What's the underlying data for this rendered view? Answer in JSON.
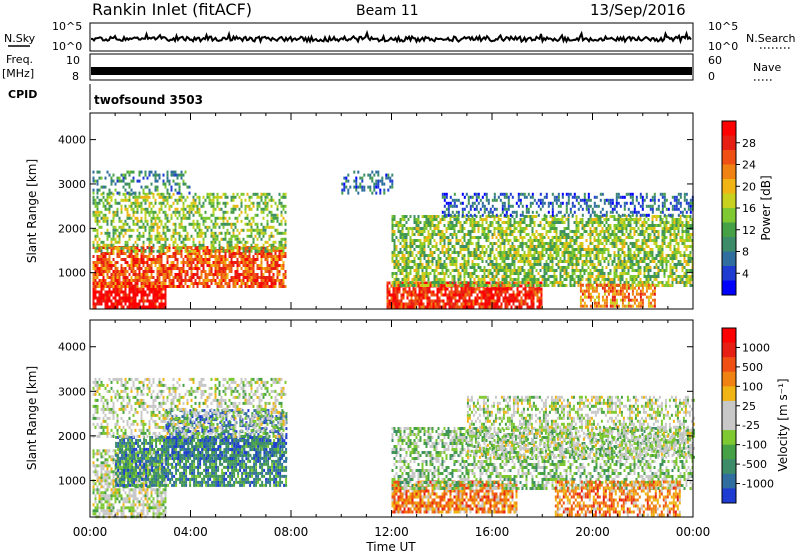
{
  "header": {
    "station": "Rankin Inlet (fitACF)",
    "beam": "Beam 11",
    "date": "13/Sep/2016"
  },
  "top_panels": {
    "nsky_label": "N.Sky",
    "nsearch_label": "N.Search",
    "nsky_ticks": [
      "10^5",
      "10^0"
    ],
    "freq_label_top": "Freq.",
    "freq_label_unit": "[MHz]",
    "freq_ticks": [
      "10",
      "8"
    ],
    "nave_label": "Nave",
    "nave_ticks": [
      "60",
      "0"
    ],
    "cpid_label": "CPID",
    "cpid_value": "twofsound 3503"
  },
  "chart_data": [
    {
      "type": "heatmap",
      "name": "power",
      "ylabel": "Slant Range [km]",
      "xlabel": "Time UT",
      "x_ticks": [
        "00:00",
        "04:00",
        "08:00",
        "12:00",
        "16:00",
        "20:00",
        "00:00"
      ],
      "x_range_hours": [
        0,
        24
      ],
      "y_ticks": [
        1000,
        2000,
        3000,
        4000
      ],
      "y_range_km": [
        180,
        4600
      ],
      "colorbar_label": "Power [dB]",
      "colorbar_ticks": [
        "28",
        "24",
        "20",
        "16",
        "12",
        "8",
        "4"
      ],
      "colorbar_colors": [
        "#0000ff",
        "#1e3cd2",
        "#2f6e9e",
        "#3c8c6a",
        "#46a046",
        "#7ec832",
        "#c8d21e",
        "#f0b414",
        "#f08214",
        "#f05014",
        "#e61e14",
        "#ff0000"
      ],
      "regions": [
        {
          "t0": 0.1,
          "t1": 3.0,
          "r0": 200,
          "r1": 800,
          "level": 11,
          "density": 0.85
        },
        {
          "t0": 0.1,
          "t1": 7.8,
          "r0": 700,
          "r1": 1600,
          "level": 9,
          "density": 0.75
        },
        {
          "t0": 0.1,
          "t1": 7.8,
          "r0": 1500,
          "r1": 2800,
          "level": 5,
          "density": 0.5
        },
        {
          "t0": 0.1,
          "t1": 4.0,
          "r0": 2800,
          "r1": 3300,
          "level": 3,
          "density": 0.35
        },
        {
          "t0": 11.8,
          "t1": 18.0,
          "r0": 200,
          "r1": 800,
          "level": 10,
          "density": 0.85
        },
        {
          "t0": 12.0,
          "t1": 24.0,
          "r0": 700,
          "r1": 2300,
          "level": 5,
          "density": 0.65
        },
        {
          "t0": 14.0,
          "t1": 24.0,
          "r0": 2300,
          "r1": 2800,
          "level": 2,
          "density": 0.45
        },
        {
          "t0": 19.5,
          "t1": 22.5,
          "r0": 250,
          "r1": 750,
          "level": 8,
          "density": 0.7
        },
        {
          "t0": 10.0,
          "t1": 12.0,
          "r0": 2800,
          "r1": 3300,
          "level": 2,
          "density": 0.4
        }
      ]
    },
    {
      "type": "heatmap",
      "name": "velocity",
      "ylabel": "Slant Range [km]",
      "xlabel": "Time UT",
      "x_ticks": [
        "00:00",
        "04:00",
        "08:00",
        "12:00",
        "16:00",
        "20:00",
        "00:00"
      ],
      "x_range_hours": [
        0,
        24
      ],
      "y_ticks": [
        1000,
        2000,
        3000,
        4000
      ],
      "y_range_km": [
        180,
        4600
      ],
      "colorbar_label": "Velocity [m s⁻¹]",
      "colorbar_ticks": [
        "1000",
        "500",
        "100",
        "25",
        "-25",
        "-100",
        "-500",
        "-1000"
      ],
      "colorbar_colors": [
        "#1e3cd2",
        "#2f6e9e",
        "#3c8c6a",
        "#46a046",
        "#7ec832",
        "#c8c8c8",
        "#c8c8c8",
        "#f0b414",
        "#f08214",
        "#f05014",
        "#e61e14",
        "#ff0000"
      ],
      "regions": [
        {
          "t0": 0.1,
          "t1": 3.0,
          "r0": 200,
          "r1": 1700,
          "level": 5,
          "density": 0.7
        },
        {
          "t0": 1.0,
          "t1": 7.8,
          "r0": 900,
          "r1": 2000,
          "level": 2,
          "density": 0.75
        },
        {
          "t0": 3.0,
          "t1": 7.8,
          "r0": 1500,
          "r1": 2600,
          "level": 1,
          "density": 0.5
        },
        {
          "t0": 0.1,
          "t1": 7.8,
          "r0": 2000,
          "r1": 3300,
          "level": 5,
          "density": 0.45
        },
        {
          "t0": 12.0,
          "t1": 17.0,
          "r0": 300,
          "r1": 1000,
          "level": 8,
          "density": 0.8
        },
        {
          "t0": 12.0,
          "t1": 24.0,
          "r0": 800,
          "r1": 2200,
          "level": 4,
          "density": 0.55
        },
        {
          "t0": 15.0,
          "t1": 24.0,
          "r0": 1500,
          "r1": 2900,
          "level": 5,
          "density": 0.5
        },
        {
          "t0": 18.5,
          "t1": 23.5,
          "r0": 250,
          "r1": 1000,
          "level": 8,
          "density": 0.65
        }
      ]
    }
  ]
}
